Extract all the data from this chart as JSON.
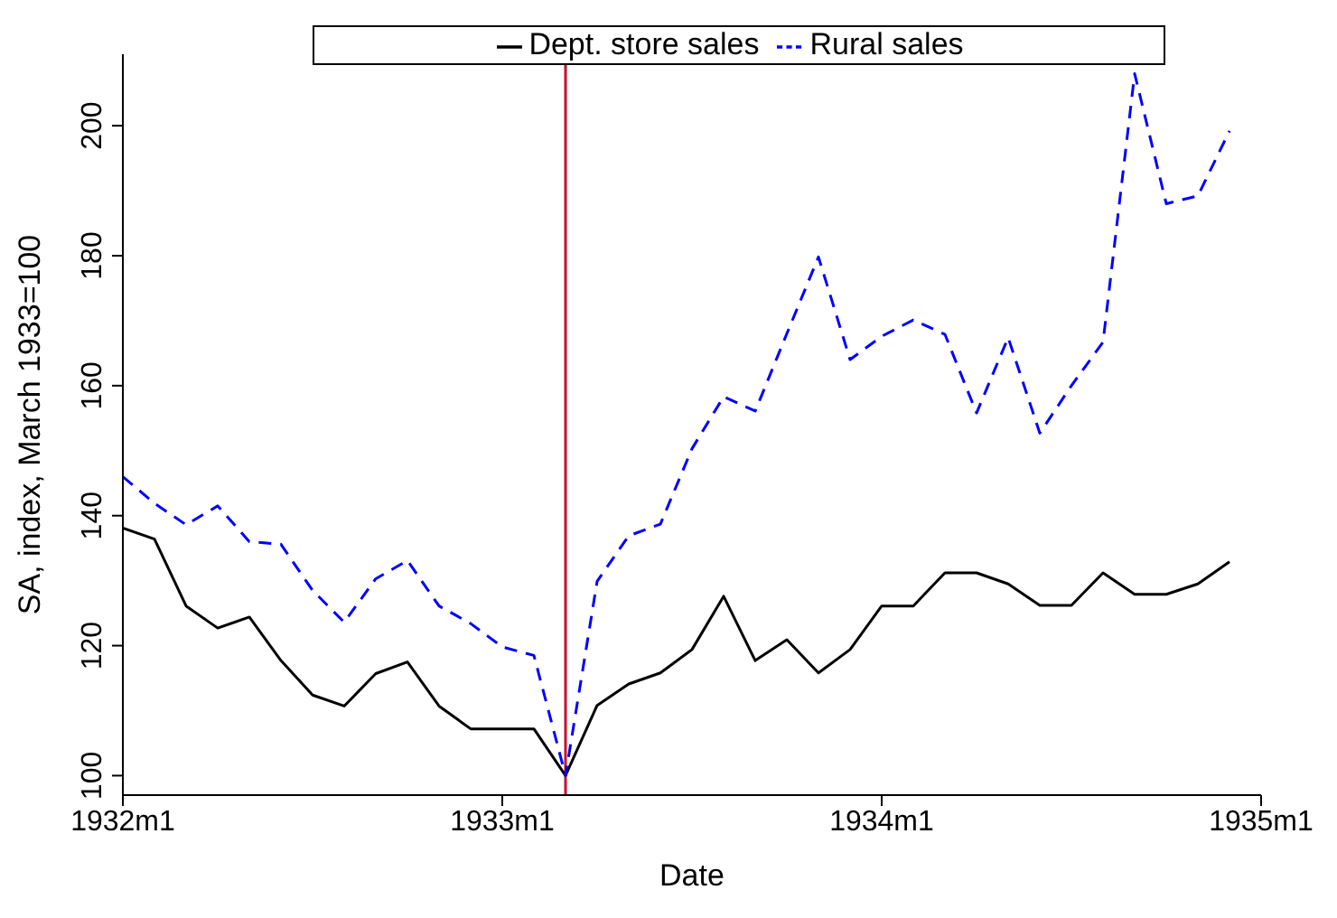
{
  "chart_data": {
    "type": "line",
    "xlabel": "Date",
    "ylabel": "SA, index, March 1933=100",
    "x": [
      "1932-01",
      "1932-02",
      "1932-03",
      "1932-04",
      "1932-05",
      "1932-06",
      "1932-07",
      "1932-08",
      "1932-09",
      "1932-10",
      "1932-11",
      "1932-12",
      "1933-01",
      "1933-02",
      "1933-03",
      "1933-04",
      "1933-05",
      "1933-06",
      "1933-07",
      "1933-08",
      "1933-09",
      "1933-10",
      "1933-11",
      "1933-12",
      "1934-01",
      "1934-02",
      "1934-03",
      "1934-04",
      "1934-05",
      "1934-06",
      "1934-07",
      "1934-08",
      "1934-09",
      "1934-10",
      "1934-11",
      "1934-12"
    ],
    "series": [
      {
        "name": "Dept. store sales",
        "color": "#000000",
        "line_style": "solid",
        "values": [
          138.1,
          136.4,
          126.1,
          122.7,
          124.4,
          117.7,
          112.4,
          110.7,
          115.7,
          117.5,
          110.7,
          107.2,
          107.2,
          107.2,
          100,
          110.8,
          114.1,
          115.8,
          119.4,
          127.6,
          117.7,
          120.9,
          115.8,
          119.4,
          126.1,
          126.1,
          131.2,
          131.2,
          129.5,
          126.2,
          126.2,
          131.2,
          127.9,
          127.9,
          129.5,
          132.9
        ]
      },
      {
        "name": "Rural sales",
        "color": "#0000ff",
        "line_style": "dashed",
        "values": [
          146,
          141.9,
          138.6,
          141.5,
          136,
          135.6,
          128.5,
          123.6,
          130.3,
          133.1,
          126.1,
          123.4,
          119.8,
          118.5,
          100,
          129.9,
          136.9,
          138.7,
          150.3,
          158.3,
          156.1,
          168,
          179.8,
          164,
          167.6,
          170.1,
          167.9,
          155.8,
          167.4,
          152.7,
          160,
          166.7,
          208,
          188,
          189.2,
          199.2
        ]
      }
    ],
    "xlim": [
      "1932-01",
      "1935-01"
    ],
    "xticks": [
      {
        "value": "1932-01",
        "label": "1932m1"
      },
      {
        "value": "1933-01",
        "label": "1933m1"
      },
      {
        "value": "1934-01",
        "label": "1934m1"
      },
      {
        "value": "1935-01",
        "label": "1935m1"
      }
    ],
    "ylim": [
      97,
      211
    ],
    "yticks": [
      100,
      120,
      140,
      160,
      180,
      200
    ],
    "ref_lines": [
      {
        "axis": "x",
        "value": "1933-03",
        "color": "#c8102e"
      }
    ],
    "legend": "top",
    "marker": "none"
  }
}
